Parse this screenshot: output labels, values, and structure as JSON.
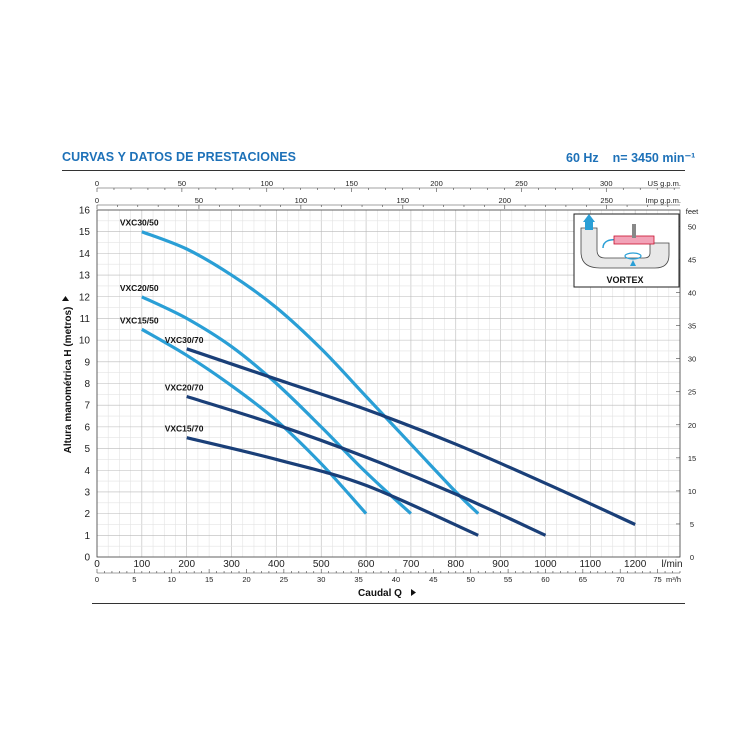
{
  "header": {
    "title": "CURVAS Y DATOS DE PRESTACIONES",
    "freq": "60 Hz",
    "speed": "n= 3450 min⁻¹"
  },
  "inset": {
    "label": "VORTEX"
  },
  "colors": {
    "light": "#2a9fd6",
    "dark": "#1a3f78",
    "grid": "#cfcfcf"
  },
  "chart_data": {
    "type": "line",
    "xlabel": "Caudal Q",
    "ylabel": "Altura manométrica H (metros)",
    "xlim": [
      0,
      1300
    ],
    "ylim": [
      0,
      16
    ],
    "grid": true,
    "x_ticks": [
      0,
      100,
      200,
      300,
      400,
      500,
      600,
      700,
      800,
      900,
      1000,
      1100,
      1200
    ],
    "x_unit": "l/min",
    "y_ticks": [
      0,
      1,
      2,
      3,
      4,
      5,
      6,
      7,
      8,
      9,
      10,
      11,
      12,
      13,
      14,
      15,
      16
    ],
    "secondary_axes": {
      "top_us": {
        "unit": "US g.p.m.",
        "ticks": [
          0,
          50,
          100,
          150,
          200,
          250,
          300
        ]
      },
      "top_imp": {
        "unit": "Imp g.p.m.",
        "ticks": [
          0,
          50,
          100,
          150,
          200,
          250
        ]
      },
      "bottom_m3h": {
        "unit": "m³/h",
        "ticks": [
          0,
          5,
          10,
          15,
          20,
          25,
          30,
          35,
          40,
          45,
          50,
          55,
          60,
          65,
          70,
          75
        ]
      },
      "right_feet": {
        "unit": "feet",
        "ticks": [
          0,
          5,
          10,
          15,
          20,
          25,
          30,
          35,
          40,
          45,
          50
        ]
      }
    },
    "series": [
      {
        "name": "VXC30/50",
        "color": "light",
        "x": [
          100,
          200,
          300,
          400,
          500,
          600,
          700,
          800,
          850
        ],
        "y": [
          15.0,
          14.2,
          13.0,
          11.5,
          9.6,
          7.4,
          5.2,
          3.0,
          2.0
        ]
      },
      {
        "name": "VXC20/50",
        "color": "light",
        "x": [
          100,
          200,
          300,
          400,
          500,
          600,
          700
        ],
        "y": [
          12.0,
          11.0,
          9.7,
          8.0,
          6.0,
          3.9,
          2.0
        ]
      },
      {
        "name": "VXC15/50",
        "color": "light",
        "x": [
          100,
          200,
          300,
          400,
          500,
          600
        ],
        "y": [
          10.5,
          9.3,
          7.9,
          6.3,
          4.3,
          2.0
        ]
      },
      {
        "name": "VXC30/70",
        "color": "dark",
        "x": [
          200,
          400,
          600,
          800,
          1000,
          1200
        ],
        "y": [
          9.6,
          8.2,
          6.8,
          5.2,
          3.4,
          1.5
        ]
      },
      {
        "name": "VXC20/70",
        "color": "dark",
        "x": [
          200,
          400,
          600,
          800,
          1000
        ],
        "y": [
          7.4,
          6.1,
          4.6,
          2.9,
          1.0
        ]
      },
      {
        "name": "VXC15/70",
        "color": "dark",
        "x": [
          200,
          400,
          600,
          850
        ],
        "y": [
          5.5,
          4.5,
          3.3,
          1.0
        ]
      }
    ]
  }
}
